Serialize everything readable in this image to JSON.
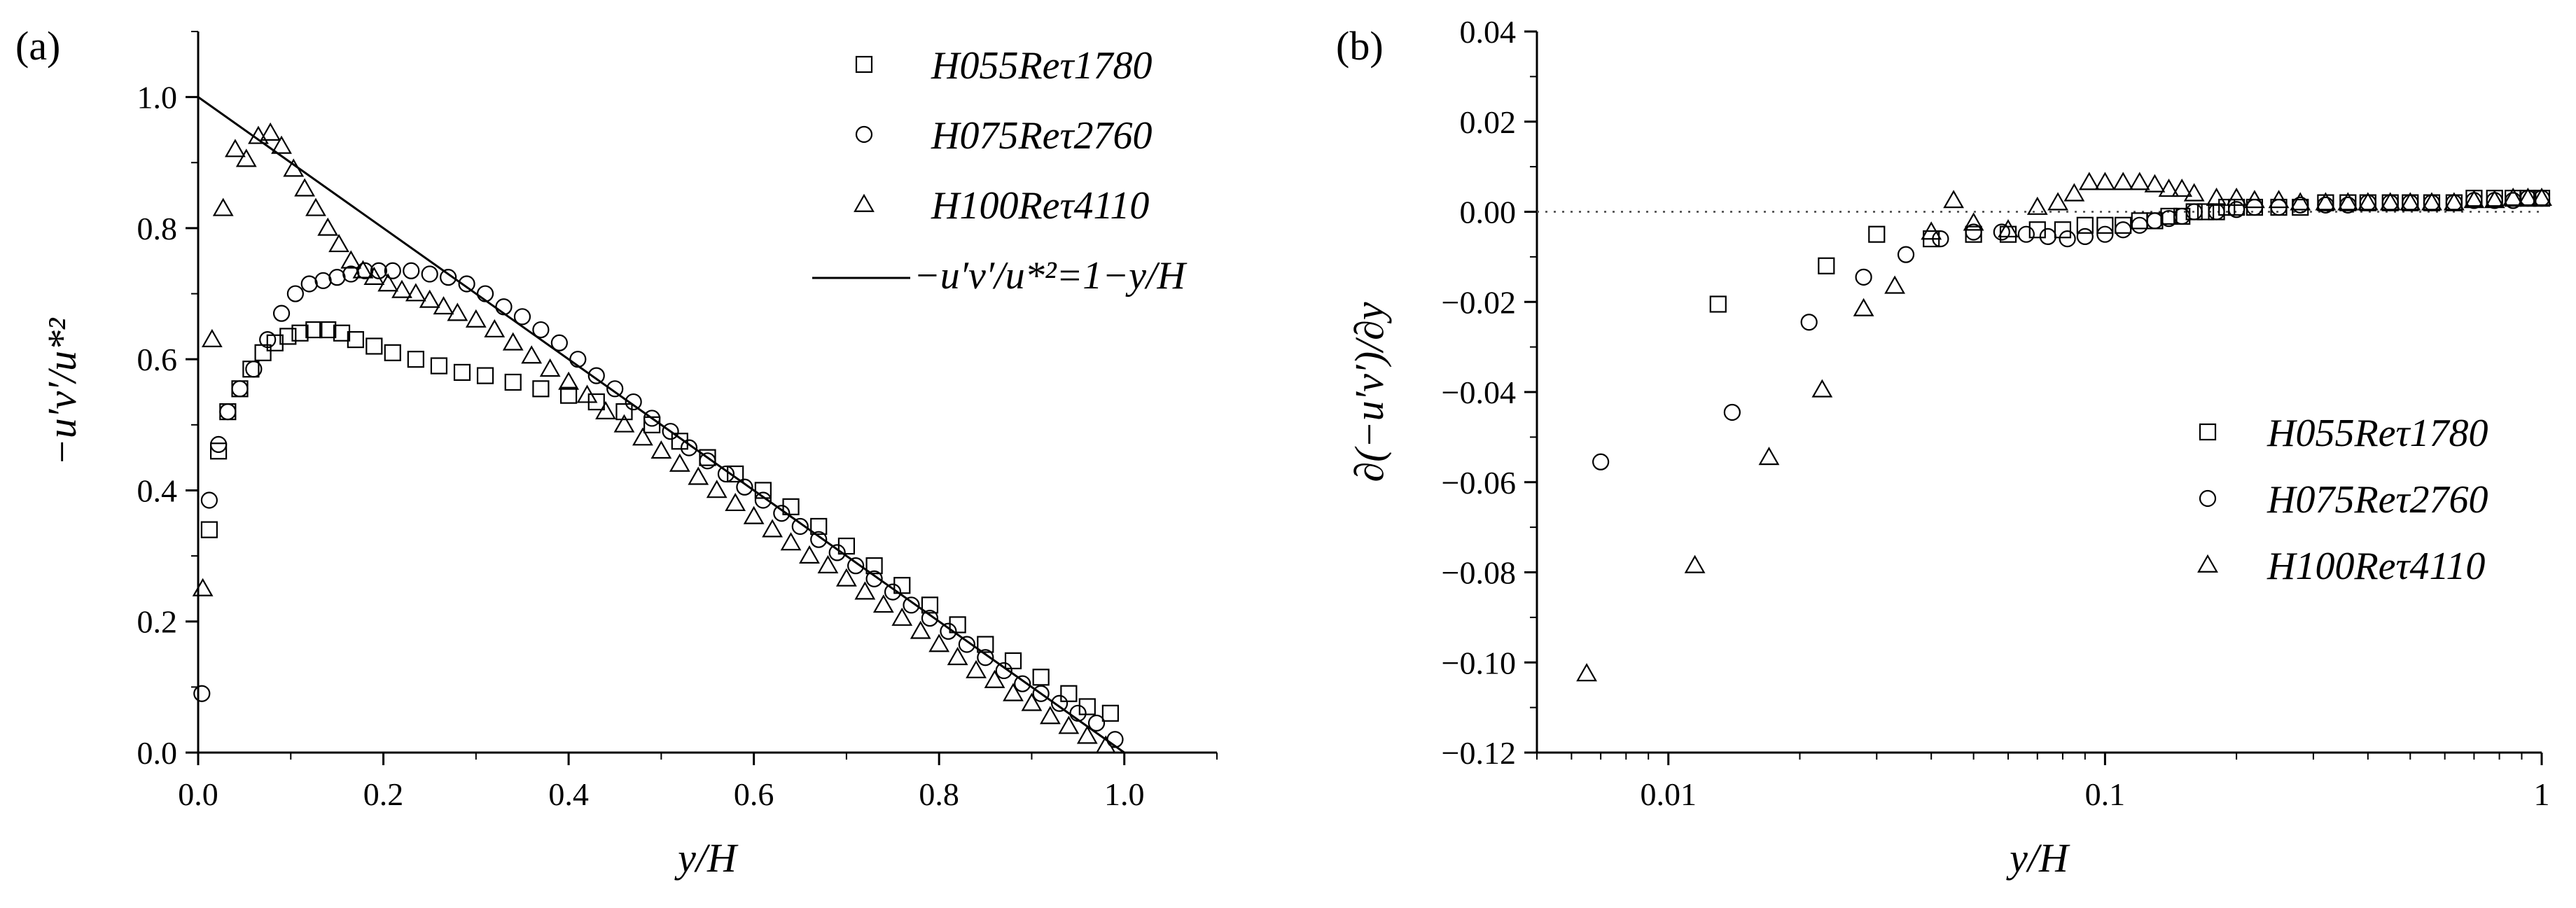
{
  "chart_data": [
    {
      "panel_label": "(a)",
      "type": "scatter",
      "xlabel": "y/H",
      "ylabel": "−u′v′/u*²",
      "xlim": [
        0.0,
        1.1
      ],
      "ylim": [
        0.0,
        1.1
      ],
      "x_ticks": [
        "0.0",
        "0.2",
        "0.4",
        "0.6",
        "0.8",
        "1.0"
      ],
      "y_ticks": [
        "0.0",
        "0.2",
        "0.4",
        "0.6",
        "0.8",
        "1.0"
      ],
      "grid": false,
      "legend_position": "top-right",
      "series": [
        {
          "name": "H055Reτ1780",
          "marker": "square",
          "x": [
            0.012,
            0.022,
            0.032,
            0.045,
            0.057,
            0.07,
            0.083,
            0.097,
            0.11,
            0.125,
            0.14,
            0.155,
            0.17,
            0.19,
            0.21,
            0.235,
            0.26,
            0.285,
            0.31,
            0.34,
            0.37,
            0.4,
            0.43,
            0.46,
            0.49,
            0.52,
            0.55,
            0.58,
            0.61,
            0.64,
            0.67,
            0.7,
            0.73,
            0.76,
            0.79,
            0.82,
            0.85,
            0.88,
            0.91,
            0.94,
            0.96,
            0.985
          ],
          "y": [
            0.34,
            0.46,
            0.52,
            0.555,
            0.585,
            0.61,
            0.625,
            0.635,
            0.64,
            0.645,
            0.645,
            0.64,
            0.63,
            0.62,
            0.61,
            0.6,
            0.59,
            0.58,
            0.575,
            0.565,
            0.555,
            0.545,
            0.535,
            0.52,
            0.5,
            0.475,
            0.45,
            0.425,
            0.4,
            0.375,
            0.345,
            0.315,
            0.285,
            0.255,
            0.225,
            0.195,
            0.165,
            0.14,
            0.115,
            0.09,
            0.07,
            0.06
          ]
        },
        {
          "name": "H075Reτ2760",
          "marker": "circle",
          "x": [
            0.004,
            0.012,
            0.022,
            0.032,
            0.045,
            0.06,
            0.075,
            0.09,
            0.105,
            0.12,
            0.135,
            0.15,
            0.165,
            0.18,
            0.195,
            0.21,
            0.23,
            0.25,
            0.27,
            0.29,
            0.31,
            0.33,
            0.35,
            0.37,
            0.39,
            0.41,
            0.43,
            0.45,
            0.47,
            0.49,
            0.51,
            0.53,
            0.55,
            0.57,
            0.59,
            0.61,
            0.63,
            0.65,
            0.67,
            0.69,
            0.71,
            0.73,
            0.75,
            0.77,
            0.79,
            0.81,
            0.83,
            0.85,
            0.87,
            0.89,
            0.91,
            0.93,
            0.95,
            0.97,
            0.99
          ],
          "y": [
            0.09,
            0.385,
            0.47,
            0.52,
            0.555,
            0.585,
            0.63,
            0.67,
            0.7,
            0.715,
            0.72,
            0.725,
            0.73,
            0.735,
            0.735,
            0.735,
            0.735,
            0.73,
            0.725,
            0.715,
            0.7,
            0.68,
            0.665,
            0.645,
            0.625,
            0.6,
            0.575,
            0.555,
            0.535,
            0.51,
            0.49,
            0.465,
            0.445,
            0.425,
            0.405,
            0.385,
            0.365,
            0.345,
            0.325,
            0.305,
            0.285,
            0.265,
            0.245,
            0.225,
            0.205,
            0.185,
            0.165,
            0.145,
            0.125,
            0.105,
            0.09,
            0.075,
            0.06,
            0.045,
            0.02
          ]
        },
        {
          "name": "H100Reτ4110",
          "marker": "triangle",
          "x": [
            0.005,
            0.015,
            0.027,
            0.04,
            0.052,
            0.065,
            0.078,
            0.09,
            0.103,
            0.115,
            0.127,
            0.14,
            0.152,
            0.165,
            0.178,
            0.19,
            0.205,
            0.22,
            0.235,
            0.25,
            0.265,
            0.28,
            0.3,
            0.32,
            0.34,
            0.36,
            0.38,
            0.4,
            0.42,
            0.44,
            0.46,
            0.48,
            0.5,
            0.52,
            0.54,
            0.56,
            0.58,
            0.6,
            0.62,
            0.64,
            0.66,
            0.68,
            0.7,
            0.72,
            0.74,
            0.76,
            0.78,
            0.8,
            0.82,
            0.84,
            0.86,
            0.88,
            0.9,
            0.92,
            0.94,
            0.96,
            0.98
          ],
          "y": [
            0.25,
            0.63,
            0.83,
            0.92,
            0.905,
            0.94,
            0.945,
            0.925,
            0.89,
            0.86,
            0.83,
            0.8,
            0.775,
            0.75,
            0.735,
            0.725,
            0.715,
            0.705,
            0.7,
            0.69,
            0.68,
            0.67,
            0.66,
            0.645,
            0.625,
            0.605,
            0.585,
            0.565,
            0.545,
            0.52,
            0.5,
            0.48,
            0.46,
            0.44,
            0.42,
            0.4,
            0.38,
            0.36,
            0.34,
            0.32,
            0.3,
            0.285,
            0.265,
            0.245,
            0.225,
            0.205,
            0.185,
            0.165,
            0.145,
            0.125,
            0.11,
            0.09,
            0.075,
            0.055,
            0.04,
            0.025,
            0.01
          ]
        }
      ],
      "line": {
        "name": "−u′v′/u*²=1−y/H",
        "x": [
          0.0,
          1.0
        ],
        "y": [
          1.0,
          0.0
        ]
      }
    },
    {
      "panel_label": "(b)",
      "type": "scatter",
      "xlabel": "y/H",
      "ylabel": "∂(−u′v′)/∂y",
      "x_scale": "log",
      "xlim": [
        0.005,
        1.0
      ],
      "ylim": [
        -0.12,
        0.04
      ],
      "x_ticks": [
        "0.01",
        "0.1",
        "1"
      ],
      "y_ticks": [
        "−0.12",
        "−0.10",
        "−0.08",
        "−0.06",
        "−0.04",
        "−0.02",
        "0.00",
        "0.02",
        "0.04"
      ],
      "reference_line": {
        "y": 0.0,
        "style": "dotted"
      },
      "grid": false,
      "legend_position": "bottom-right",
      "series": [
        {
          "name": "H055Reτ1780",
          "marker": "square",
          "x": [
            0.013,
            0.023,
            0.03,
            0.04,
            0.05,
            0.06,
            0.07,
            0.08,
            0.09,
            0.1,
            0.11,
            0.12,
            0.13,
            0.14,
            0.15,
            0.16,
            0.17,
            0.18,
            0.19,
            0.2,
            0.22,
            0.25,
            0.28,
            0.32,
            0.36,
            0.4,
            0.45,
            0.5,
            0.56,
            0.63,
            0.7,
            0.78,
            0.86,
            0.93,
            1.0
          ],
          "y": [
            -0.0205,
            -0.012,
            -0.005,
            -0.006,
            -0.005,
            -0.005,
            -0.004,
            -0.004,
            -0.003,
            -0.003,
            -0.003,
            -0.002,
            -0.002,
            -0.001,
            -0.001,
            0.0,
            0.0,
            0.0,
            0.001,
            0.001,
            0.001,
            0.001,
            0.001,
            0.002,
            0.002,
            0.002,
            0.002,
            0.002,
            0.002,
            0.002,
            0.003,
            0.003,
            0.003,
            0.003,
            0.003
          ]
        },
        {
          "name": "H075Reτ2760",
          "marker": "circle",
          "x": [
            0.007,
            0.014,
            0.021,
            0.028,
            0.035,
            0.042,
            0.05,
            0.058,
            0.066,
            0.074,
            0.082,
            0.09,
            0.1,
            0.11,
            0.12,
            0.13,
            0.14,
            0.15,
            0.16,
            0.18,
            0.2,
            0.22,
            0.25,
            0.28,
            0.32,
            0.36,
            0.4,
            0.45,
            0.5,
            0.56,
            0.63,
            0.7,
            0.78,
            0.86,
            0.93,
            1.0
          ],
          "y": [
            -0.0555,
            -0.0445,
            -0.0245,
            -0.0145,
            -0.0095,
            -0.006,
            -0.0045,
            -0.0045,
            -0.005,
            -0.0055,
            -0.006,
            -0.0055,
            -0.005,
            -0.004,
            -0.003,
            -0.002,
            -0.0015,
            -0.001,
            0.0,
            0.0,
            0.0005,
            0.001,
            0.001,
            0.0015,
            0.0015,
            0.0015,
            0.002,
            0.002,
            0.002,
            0.002,
            0.002,
            0.0025,
            0.0025,
            0.0025,
            0.003,
            0.003
          ]
        },
        {
          "name": "H100Reτ4110",
          "marker": "triangle",
          "x": [
            0.0065,
            0.0115,
            0.017,
            0.0225,
            0.028,
            0.033,
            0.04,
            0.045,
            0.05,
            0.06,
            0.07,
            0.078,
            0.085,
            0.092,
            0.1,
            0.11,
            0.12,
            0.13,
            0.14,
            0.15,
            0.16,
            0.18,
            0.2,
            0.22,
            0.25,
            0.28,
            0.32,
            0.36,
            0.4,
            0.45,
            0.5,
            0.56,
            0.63,
            0.7,
            0.78,
            0.86,
            0.93,
            1.0
          ],
          "y": [
            -0.1025,
            -0.0785,
            -0.0545,
            -0.0395,
            -0.0215,
            -0.0165,
            -0.0045,
            0.0025,
            -0.0025,
            -0.004,
            0.001,
            0.002,
            0.004,
            0.0065,
            0.0065,
            0.0065,
            0.0065,
            0.006,
            0.005,
            0.005,
            0.004,
            0.003,
            0.003,
            0.0025,
            0.0025,
            0.002,
            0.002,
            0.002,
            0.002,
            0.002,
            0.002,
            0.002,
            0.002,
            0.0025,
            0.0025,
            0.003,
            0.003,
            0.003
          ]
        }
      ]
    }
  ]
}
